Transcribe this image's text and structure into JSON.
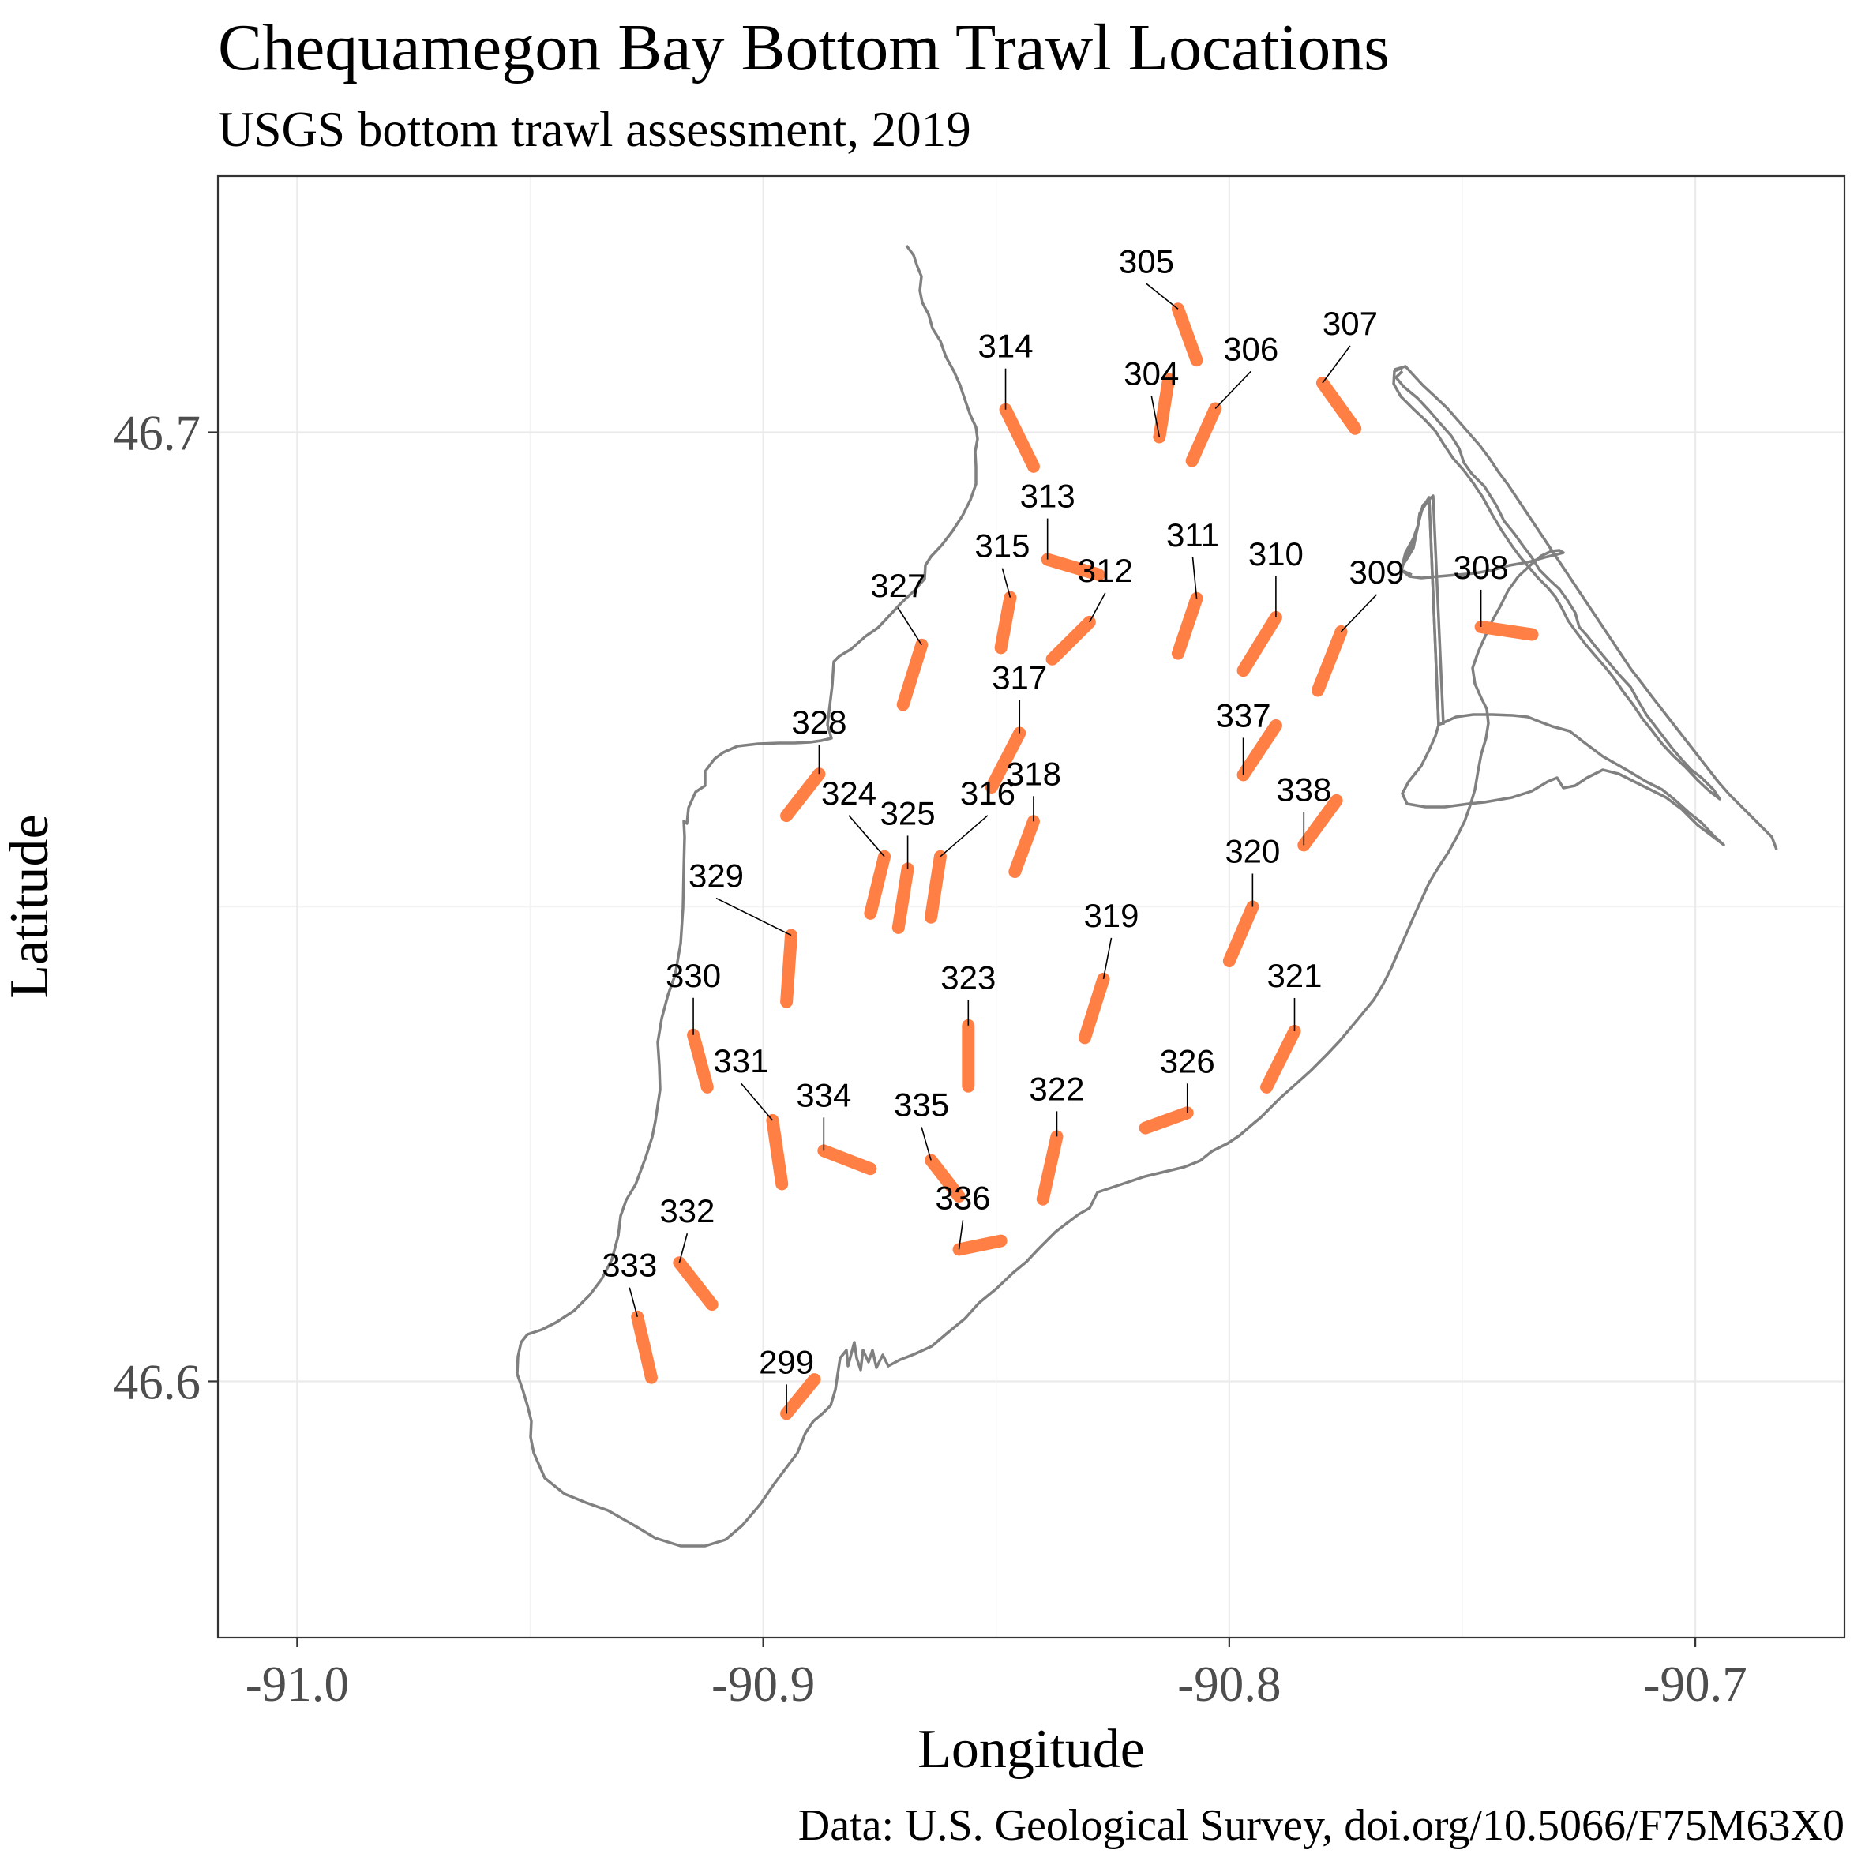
{
  "header": {
    "title": "Chequamegon Bay Bottom Trawl Locations",
    "subtitle": "USGS bottom trawl assessment,  2019"
  },
  "caption": "Data: U.S. Geological Survey, doi.org/10.5066/F75M63X0",
  "colors": {
    "trawl": "#ff7f45",
    "coastline": "#808080",
    "grid": "#ebebeb",
    "tick_text": "#4d4d4d"
  },
  "chart_data": {
    "type": "map",
    "xlabel": "Longitude",
    "ylabel": "Latitude",
    "xlim": [
      -91.017,
      -90.668
    ],
    "ylim": [
      46.573,
      46.727
    ],
    "x_ticks": [
      -91.0,
      -90.9,
      -90.8,
      -90.7
    ],
    "x_tick_labels": [
      "-91.0",
      "-90.9",
      "-90.8",
      "-90.7"
    ],
    "y_ticks": [
      46.6,
      46.7
    ],
    "y_tick_labels": [
      "46.6",
      "46.7"
    ],
    "grid": true,
    "trawls": [
      {
        "id": "299",
        "start": [
          -90.895,
          46.5966
        ],
        "end": [
          -90.889,
          46.6002
        ]
      },
      {
        "id": "304",
        "start": [
          -90.815,
          46.6995
        ],
        "end": [
          -90.813,
          46.7056
        ]
      },
      {
        "id": "305",
        "start": [
          -90.811,
          46.713
        ],
        "end": [
          -90.807,
          46.7076
        ]
      },
      {
        "id": "306",
        "start": [
          -90.803,
          46.7025
        ],
        "end": [
          -90.808,
          46.697
        ]
      },
      {
        "id": "307",
        "start": [
          -90.78,
          46.7052
        ],
        "end": [
          -90.773,
          46.7004
        ]
      },
      {
        "id": "308",
        "start": [
          -90.846,
          46.6795
        ],
        "end": [
          -90.835,
          46.6787
        ],
        "lon_shift": 0.1
      },
      {
        "id": "309",
        "start": [
          -90.776,
          46.679
        ],
        "end": [
          -90.781,
          46.6728
        ]
      },
      {
        "id": "310",
        "start": [
          -90.79,
          46.6805
        ],
        "end": [
          -90.797,
          46.6749
        ]
      },
      {
        "id": "311",
        "start": [
          -90.807,
          46.6825
        ],
        "end": [
          -90.811,
          46.6767
        ]
      },
      {
        "id": "312",
        "start": [
          -90.83,
          46.68
        ],
        "end": [
          -90.838,
          46.6761
        ]
      },
      {
        "id": "313",
        "start": [
          -90.839,
          46.6866
        ],
        "end": [
          -90.828,
          46.685
        ]
      },
      {
        "id": "314",
        "start": [
          -90.848,
          46.7024
        ],
        "end": [
          -90.842,
          46.6964
        ]
      },
      {
        "id": "315",
        "start": [
          -90.847,
          46.6826
        ],
        "end": [
          -90.849,
          46.6773
        ]
      },
      {
        "id": "316",
        "start": [
          -90.862,
          46.6553
        ],
        "end": [
          -90.864,
          46.6489
        ]
      },
      {
        "id": "317",
        "start": [
          -90.845,
          46.6683
        ],
        "end": [
          -90.851,
          46.6626
        ]
      },
      {
        "id": "318",
        "start": [
          -90.842,
          46.659
        ],
        "end": [
          -90.846,
          46.6537
        ]
      },
      {
        "id": "319",
        "start": [
          -90.827,
          46.6424
        ],
        "end": [
          -90.831,
          46.6362
        ]
      },
      {
        "id": "320",
        "start": [
          -90.795,
          46.65
        ],
        "end": [
          -90.8,
          46.6443
        ]
      },
      {
        "id": "321",
        "start": [
          -90.786,
          46.6369
        ],
        "end": [
          -90.792,
          46.631
        ]
      },
      {
        "id": "322",
        "start": [
          -90.837,
          46.6258
        ],
        "end": [
          -90.84,
          46.6192
        ]
      },
      {
        "id": "323",
        "start": [
          -90.856,
          46.6375
        ],
        "end": [
          -90.856,
          46.6311
        ]
      },
      {
        "id": "324",
        "start": [
          -90.874,
          46.6553
        ],
        "end": [
          -90.877,
          46.6493
        ]
      },
      {
        "id": "325",
        "start": [
          -90.869,
          46.654
        ],
        "end": [
          -90.871,
          46.6478
        ]
      },
      {
        "id": "326",
        "start": [
          -90.809,
          46.6283
        ],
        "end": [
          -90.818,
          46.6267
        ]
      },
      {
        "id": "327",
        "start": [
          -90.866,
          46.6776
        ],
        "end": [
          -90.87,
          46.6713
        ]
      },
      {
        "id": "328",
        "start": [
          -90.888,
          46.664
        ],
        "end": [
          -90.895,
          46.6596
        ]
      },
      {
        "id": "329",
        "start": [
          -90.894,
          46.647
        ],
        "end": [
          -90.895,
          46.64
        ]
      },
      {
        "id": "330",
        "start": [
          -90.915,
          46.6365
        ],
        "end": [
          -90.912,
          46.631
        ]
      },
      {
        "id": "331",
        "start": [
          -90.898,
          46.6275
        ],
        "end": [
          -90.896,
          46.6208
        ]
      },
      {
        "id": "332",
        "start": [
          -90.918,
          46.6125
        ],
        "end": [
          -90.911,
          46.6081
        ]
      },
      {
        "id": "333",
        "start": [
          -90.927,
          46.6068
        ],
        "end": [
          -90.924,
          46.6004
        ]
      },
      {
        "id": "334",
        "start": [
          -90.887,
          46.6243
        ],
        "end": [
          -90.877,
          46.6224
        ]
      },
      {
        "id": "335",
        "start": [
          -90.864,
          46.6233
        ],
        "end": [
          -90.858,
          46.6195
        ]
      },
      {
        "id": "336",
        "start": [
          -90.858,
          46.6139
        ],
        "end": [
          -90.849,
          46.6148
        ]
      },
      {
        "id": "337",
        "start": [
          -90.797,
          46.6639
        ],
        "end": [
          -90.79,
          46.6691
        ]
      },
      {
        "id": "338",
        "start": [
          -90.784,
          46.6565
        ],
        "end": [
          -90.777,
          46.6612
        ]
      }
    ],
    "annotations": [
      "299",
      "304",
      "305",
      "306",
      "307",
      "308",
      "309",
      "310",
      "311",
      "312",
      "313",
      "314",
      "315",
      "316",
      "317",
      "318",
      "319",
      "320",
      "321",
      "322",
      "323",
      "324",
      "325",
      "326",
      "327",
      "328",
      "329",
      "330",
      "331",
      "332",
      "333",
      "334",
      "335",
      "336",
      "337",
      "338"
    ]
  }
}
